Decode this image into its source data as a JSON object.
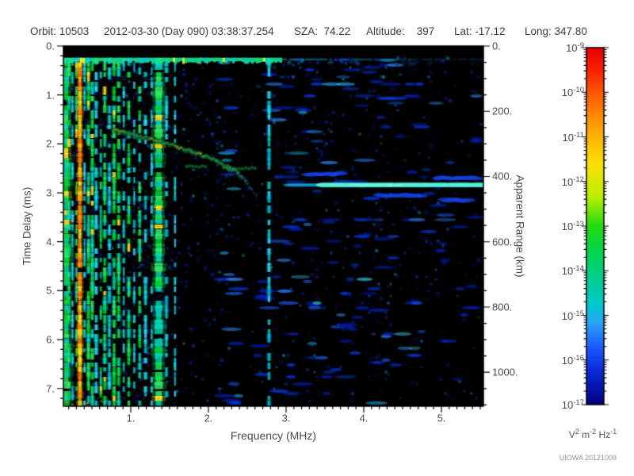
{
  "header": {
    "items": [
      "Orbit: 10503",
      "2012-03-30 (Day 090) 03:38:37.254",
      "SZA:  74.22",
      "Altitude:    397",
      "Lat: -17.12",
      "Long: 347.80"
    ]
  },
  "chart_data": {
    "type": "heatmap",
    "x_axis": {
      "label": "Frequency (MHz)",
      "min": 0.13,
      "max": 5.54,
      "tick_values": [
        1,
        2,
        3,
        4,
        5
      ],
      "tick_labels": [
        "1.",
        "2.",
        "3.",
        "4.",
        "5."
      ],
      "minor_step": 0.1
    },
    "y_axis_left": {
      "label": "Time Delay (ms)",
      "min": 0,
      "max": 7.36,
      "tick_values": [
        0,
        1,
        2,
        3,
        4,
        5,
        6,
        7
      ],
      "tick_labels": [
        "0.",
        "1.",
        "2.",
        "3.",
        "4.",
        "5.",
        "6.",
        "7."
      ],
      "minor_step": 0.2
    },
    "y_axis_right": {
      "label": "Apparent Range (km)",
      "min": 0,
      "max": 1104,
      "tick_values": [
        0,
        200,
        400,
        600,
        800,
        1000
      ],
      "tick_labels": [
        "0.",
        "200.",
        "400.",
        "600.",
        "800.",
        "1000."
      ],
      "minor_step": 50
    },
    "colorbar": {
      "scale": "log",
      "base": "10",
      "exponents": [
        -9,
        -10,
        -11,
        -12,
        -13,
        -14,
        -15,
        -16,
        -17
      ],
      "unit_parts": [
        {
          "b": "V",
          "e": "2"
        },
        {
          "b": "m",
          "e": "-2"
        },
        {
          "b": "Hz",
          "e": "-1"
        }
      ],
      "colormap": [
        [
          0,
          "#e60000"
        ],
        [
          0.06,
          "#fb1e00"
        ],
        [
          0.125,
          "#ff5500"
        ],
        [
          0.2,
          "#ff9100"
        ],
        [
          0.25,
          "#ffb400"
        ],
        [
          0.33,
          "#fbe300"
        ],
        [
          0.42,
          "#b8ee00"
        ],
        [
          0.5,
          "#20dc10"
        ],
        [
          0.58,
          "#00d455"
        ],
        [
          0.655,
          "#00cd96"
        ],
        [
          0.72,
          "#00c8cc"
        ],
        [
          0.77,
          "#2da4f8"
        ],
        [
          0.84,
          "#1b5aff"
        ],
        [
          0.9,
          "#0c2cdc"
        ],
        [
          1,
          "#000082"
        ]
      ]
    },
    "features": {
      "background": "#000000",
      "top_blank_band_ms": [
        0,
        0.22
      ],
      "direct_row_t": 0.27,
      "plasma_harmonic_stripes": [
        [
          0.155,
          9,
          "g",
          0.97
        ],
        [
          0.205,
          3,
          "g",
          0.5
        ],
        [
          0.25,
          2,
          "c",
          0.45
        ],
        [
          0.3,
          2,
          "g",
          0.4
        ],
        [
          0.345,
          4,
          "o",
          0.97
        ],
        [
          0.405,
          2,
          "c",
          0.4
        ],
        [
          0.455,
          3,
          "g",
          0.55
        ],
        [
          0.505,
          3,
          "g",
          0.65
        ],
        [
          0.555,
          3,
          "c",
          0.5
        ],
        [
          0.615,
          2,
          "g",
          0.45
        ],
        [
          0.665,
          3,
          "g",
          0.6
        ],
        [
          0.725,
          3,
          "c",
          0.5
        ],
        [
          0.785,
          3,
          "g",
          0.65
        ],
        [
          0.845,
          3,
          "g",
          0.55
        ],
        [
          0.91,
          2,
          "c",
          0.45
        ],
        [
          0.975,
          3,
          "g",
          0.55
        ],
        [
          1.045,
          2,
          "c",
          0.4
        ],
        [
          1.115,
          3,
          "g",
          0.5
        ],
        [
          1.19,
          3,
          "c",
          0.45
        ],
        [
          1.27,
          2,
          "c",
          0.4
        ],
        [
          1.36,
          8,
          "g",
          0.92
        ],
        [
          1.46,
          3,
          "c",
          0.35
        ],
        [
          1.57,
          2,
          "c",
          0.3
        ],
        [
          2.78,
          3,
          "c",
          0.45
        ]
      ],
      "ionosphere_trace": [
        [
          0.78,
          1.72
        ],
        [
          0.92,
          1.76
        ],
        [
          1.08,
          1.83
        ],
        [
          1.25,
          1.9
        ],
        [
          1.42,
          1.98
        ],
        [
          1.6,
          2.06
        ],
        [
          1.78,
          2.15
        ],
        [
          1.95,
          2.25
        ],
        [
          2.1,
          2.34
        ],
        [
          2.25,
          2.46
        ],
        [
          2.38,
          2.6
        ],
        [
          2.48,
          2.76
        ],
        [
          2.56,
          2.92
        ],
        [
          2.62,
          3.04
        ]
      ],
      "trace_hotspots": [
        0.85,
        1.3,
        1.62,
        1.9
      ],
      "secondary_echo_bars": [
        [
          1.72,
          1.98,
          2.46
        ],
        [
          2.2,
          2.64,
          2.5
        ]
      ],
      "surface_reflection": {
        "t": 2.84,
        "f_start": 3.02,
        "f_bright": 3.45,
        "core0": 3.85,
        "core1": 4.55
      },
      "extra_streaks": [
        [
          4.95,
          5.45,
          2.7
        ],
        [
          4.2,
          4.75,
          3.05
        ],
        [
          5.05,
          5.35,
          3.15
        ],
        [
          3.3,
          3.7,
          2.62
        ]
      ],
      "bottom_spots": [
        [
          0.17,
          7.28
        ],
        [
          0.25,
          7.33
        ],
        [
          0.44,
          7.3
        ],
        [
          0.62,
          7.26
        ],
        [
          0.34,
          7.2
        ]
      ],
      "noise_regions": [
        {
          "f0": 0.13,
          "f1": 1.5,
          "d": 0.62,
          "c": 0.55
        },
        {
          "f0": 1.5,
          "f1": 2.38,
          "d": 0.5,
          "c": 0.5
        },
        {
          "f0": 2.38,
          "f1": 2.62,
          "d": 0.18,
          "c": 0.3
        },
        {
          "f0": 2.62,
          "f1": 3.2,
          "d": 0.34,
          "c": 0.35
        },
        {
          "f0": 3.2,
          "f1": 4.5,
          "d": 0.44,
          "c": 0.3
        },
        {
          "f0": 4.5,
          "f1": 5.12,
          "d": 0.34,
          "c": 0.25
        },
        {
          "f0": 5.12,
          "f1": 5.54,
          "d": 0.17,
          "c": 0.2
        }
      ]
    },
    "watermark": "UIOWA 20121009"
  }
}
